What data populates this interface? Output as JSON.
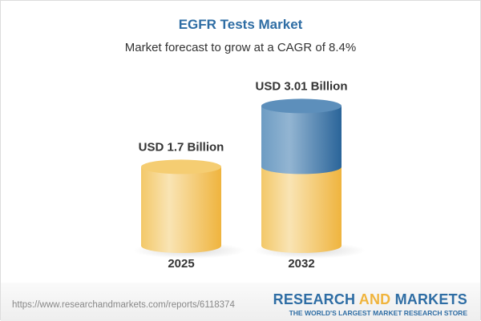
{
  "chart_data": {
    "type": "bar",
    "title": "EGFR Tests Market",
    "subtitle": "Market forecast to grow at a CAGR of 8.4%",
    "categories": [
      "2025",
      "2032"
    ],
    "values": [
      1.7,
      3.01
    ],
    "data_labels": [
      "USD 1.7 Billion",
      "USD 3.01 Billion"
    ],
    "unit": "USD Billion",
    "style": "3d-cylinder",
    "grid": false,
    "colors": {
      "base": "#f2c25a",
      "growth": "#3c78aa"
    }
  },
  "footer": {
    "url": "https://www.researchandmarkets.com/reports/6118374",
    "logo_part1": "RESEARCH ",
    "logo_part2": "AND",
    "logo_part3": " MARKETS",
    "tagline": "THE WORLD'S LARGEST MARKET RESEARCH STORE"
  }
}
